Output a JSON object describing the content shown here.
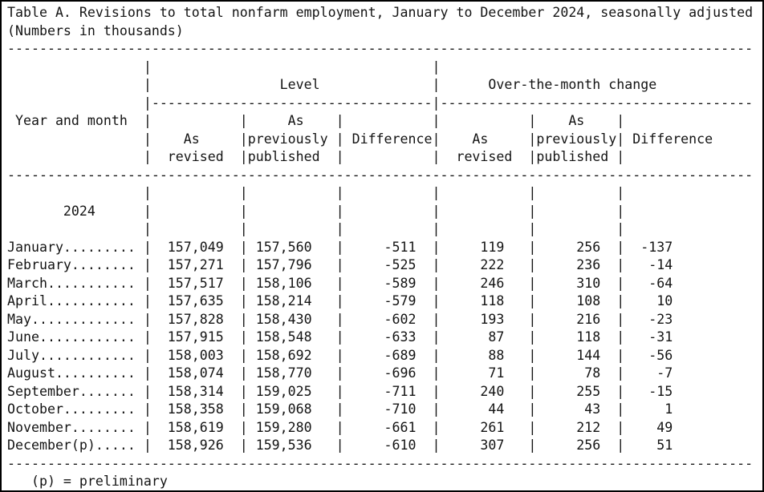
{
  "page": {
    "title": "Table A. Revisions to total nonfarm employment, January to December 2024, seasonally adjusted",
    "subtitle": "(Numbers in thousands)",
    "footnote": "(p) = preliminary"
  },
  "table": {
    "row_header": "Year and month",
    "year_label": "2024",
    "group_headers": {
      "level": "Level",
      "otm": "Over-the-month change"
    },
    "header_words": {
      "as": "As",
      "revised": "revised",
      "previously": "previously",
      "published": "published",
      "difference": "Difference"
    },
    "columns": [
      "As revised (Level)",
      "As previously published (Level)",
      "Difference (Level)",
      "As revised (Over-the-month change)",
      "As previously published (Over-the-month change)",
      "Difference (Over-the-month change)"
    ],
    "rows": [
      {
        "month": "January",
        "level_revised": "157,049",
        "level_published": "157,560",
        "level_difference": "-511",
        "otm_revised": "119",
        "otm_published": "256",
        "otm_difference": "-137"
      },
      {
        "month": "February",
        "level_revised": "157,271",
        "level_published": "157,796",
        "level_difference": "-525",
        "otm_revised": "222",
        "otm_published": "236",
        "otm_difference": "-14"
      },
      {
        "month": "March",
        "level_revised": "157,517",
        "level_published": "158,106",
        "level_difference": "-589",
        "otm_revised": "246",
        "otm_published": "310",
        "otm_difference": "-64"
      },
      {
        "month": "April",
        "level_revised": "157,635",
        "level_published": "158,214",
        "level_difference": "-579",
        "otm_revised": "118",
        "otm_published": "108",
        "otm_difference": "10"
      },
      {
        "month": "May",
        "level_revised": "157,828",
        "level_published": "158,430",
        "level_difference": "-602",
        "otm_revised": "193",
        "otm_published": "216",
        "otm_difference": "-23"
      },
      {
        "month": "June",
        "level_revised": "157,915",
        "level_published": "158,548",
        "level_difference": "-633",
        "otm_revised": "87",
        "otm_published": "118",
        "otm_difference": "-31"
      },
      {
        "month": "July",
        "level_revised": "158,003",
        "level_published": "158,692",
        "level_difference": "-689",
        "otm_revised": "88",
        "otm_published": "144",
        "otm_difference": "-56"
      },
      {
        "month": "August",
        "level_revised": "158,074",
        "level_published": "158,770",
        "level_difference": "-696",
        "otm_revised": "71",
        "otm_published": "78",
        "otm_difference": "-7"
      },
      {
        "month": "September",
        "level_revised": "158,314",
        "level_published": "159,025",
        "level_difference": "-711",
        "otm_revised": "240",
        "otm_published": "255",
        "otm_difference": "-15"
      },
      {
        "month": "October",
        "level_revised": "158,358",
        "level_published": "159,068",
        "level_difference": "-710",
        "otm_revised": "44",
        "otm_published": "43",
        "otm_difference": "1"
      },
      {
        "month": "November",
        "level_revised": "158,619",
        "level_published": "159,280",
        "level_difference": "-661",
        "otm_revised": "261",
        "otm_published": "212",
        "otm_difference": "49"
      },
      {
        "month": "December(p)",
        "level_revised": "158,926",
        "level_published": "159,536",
        "level_difference": "-610",
        "otm_revised": "307",
        "otm_published": "256",
        "otm_difference": "51"
      }
    ]
  }
}
